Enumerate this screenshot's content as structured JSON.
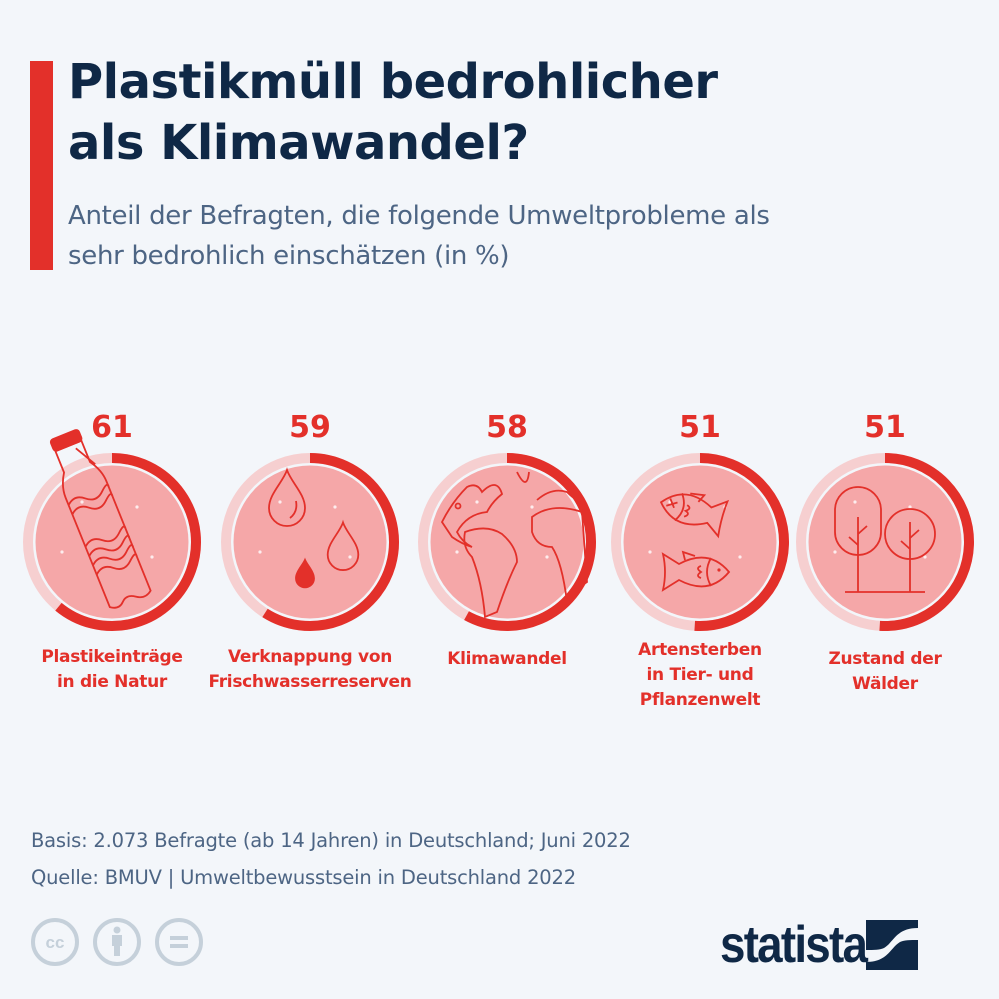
{
  "header": {
    "title_line1": "Plastikmüll bedrohlicher",
    "title_line2": "als Klimawandel?",
    "subtitle_line1": "Anteil der Befragten, die folgende Umweltprobleme als",
    "subtitle_line2": "sehr bedrohlich einschätzen (in %)"
  },
  "colors": {
    "accent": "#e3302a",
    "circle_fill": "#f5a7a8",
    "ring_track": "#f6cfd0",
    "title": "#0f2846",
    "subtitle": "#4d6584",
    "background": "#f3f6fa"
  },
  "chart_data": {
    "type": "radial-progress",
    "title": "Plastikmüll bedrohlicher als Klimawandel?",
    "unit": "%",
    "max": 100,
    "categories": [
      "Plastikeinträge in die Natur",
      "Verknappung von Frischwasserreserven",
      "Klimawandel",
      "Artensterben in Tier- und Pflanzenwelt",
      "Zustand der Wälder"
    ],
    "values": [
      61,
      59,
      58,
      51,
      51
    ],
    "items": [
      {
        "value": "61",
        "label_lines": [
          "Plastikeinträge",
          "in die Natur"
        ],
        "icon": "plastic-bottle-icon"
      },
      {
        "value": "59",
        "label_lines": [
          "Verknappung von",
          "Frischwasserreserven"
        ],
        "icon": "water-drops-icon"
      },
      {
        "value": "58",
        "label_lines": [
          "Klimawandel"
        ],
        "icon": "globe-icon"
      },
      {
        "value": "51",
        "label_lines": [
          "Artensterben",
          "in Tier- und",
          "Pflanzenwelt"
        ],
        "icon": "fish-icon"
      },
      {
        "value": "51",
        "label_lines": [
          "Zustand der",
          "Wälder"
        ],
        "icon": "trees-icon"
      }
    ]
  },
  "footer": {
    "basis": "Basis: 2.073 Befragte (ab 14 Jahren) in Deutschland; Juni 2022",
    "source": "Quelle: BMUV | Umweltbewusstsein in Deutschland 2022",
    "license_icons": [
      "cc-icon",
      "attribution-icon",
      "no-derivatives-icon"
    ],
    "logo": "statista"
  }
}
